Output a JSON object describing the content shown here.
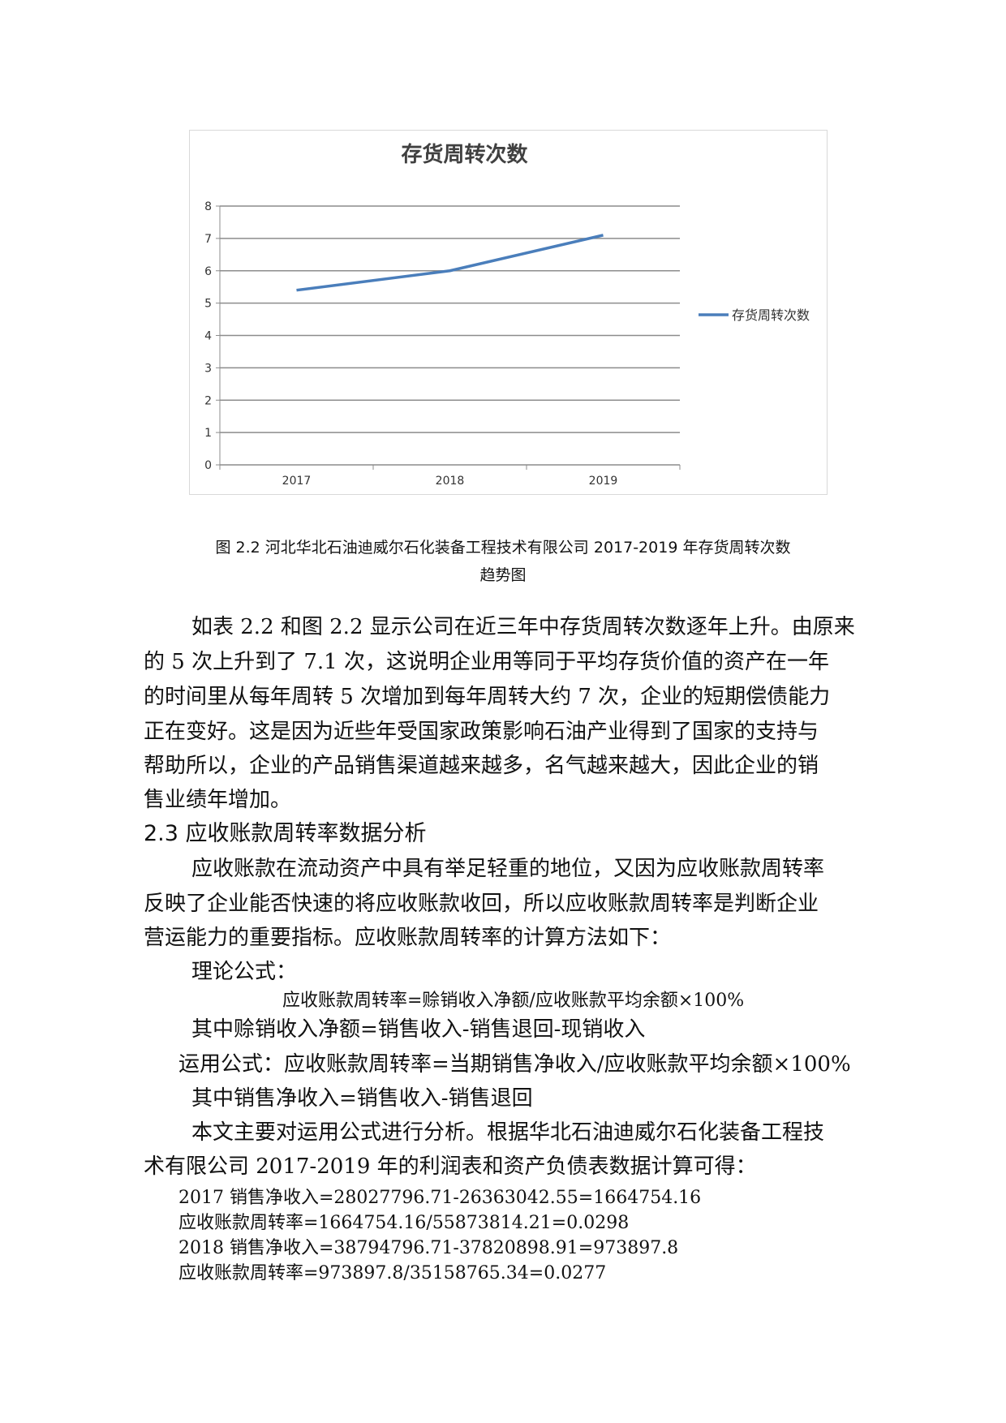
{
  "chart_data": {
    "type": "line",
    "title": "存货周转次数",
    "categories": [
      "2017",
      "2018",
      "2019"
    ],
    "series": [
      {
        "name": "存货周转次数",
        "values": [
          5.4,
          6.0,
          7.1
        ],
        "color": "#4a7ebb"
      }
    ],
    "ylim": [
      0,
      8
    ],
    "yticks": [
      0,
      1,
      2,
      3,
      4,
      5,
      6,
      7,
      8
    ],
    "grid": true,
    "legend": "right"
  },
  "caption": [
    "图 2.2 河北华北石油迪威尔石化装备工程技术有限公司 2017-2019 年存货周转次数",
    "趋势图"
  ],
  "lines": [
    "如表 2.2 和图 2.2 显示公司在近三年中存货周转次数逐年上升。由原来",
    "的 5 次上升到了 7.1 次，这说明企业用等同于平均存货价值的资产在一年",
    "的时间里从每年周转 5 次增加到每年周转大约 7 次，企业的短期偿债能力",
    "正在变好。这是因为近些年受国家政策影响石油产业得到了国家的支持与",
    "帮助所以，企业的产品销售渠道越来越多，名气越来越大，因此企业的销",
    "售业绩年增加。",
    "2.3 应收账款周转率数据分析",
    "应收账款在流动资产中具有举足轻重的地位，又因为应收账款周转率",
    "反映了企业能否快速的将应收账款收回，所以应收账款周转率是判断企业",
    "营运能力的重要指标。应收账款周转率的计算方法如下：",
    "理论公式：",
    "应收账款周转率=赊销收入净额/应收账款平均余额×100%",
    "其中赊销收入净额=销售收入-销售退回-现销收入",
    "运用公式：应收账款周转率=当期销售净收入/应收账款平均余额×100%",
    "其中销售净收入=销售收入-销售退回",
    "本文主要对运用公式进行分析。根据华北石油迪威尔石化装备工程技",
    "术有限公司 2017-2019 年的利润表和资产负债表数据计算可得：",
    "2017 销售净收入=28027796.71-26363042.55=1664754.16",
    "应收账款周转率=1664754.16/55873814.21=0.0298",
    "2018 销售净收入=38794796.71-37820898.91=973897.8",
    "应收账款周转率=973897.8/35158765.34=0.0277"
  ]
}
